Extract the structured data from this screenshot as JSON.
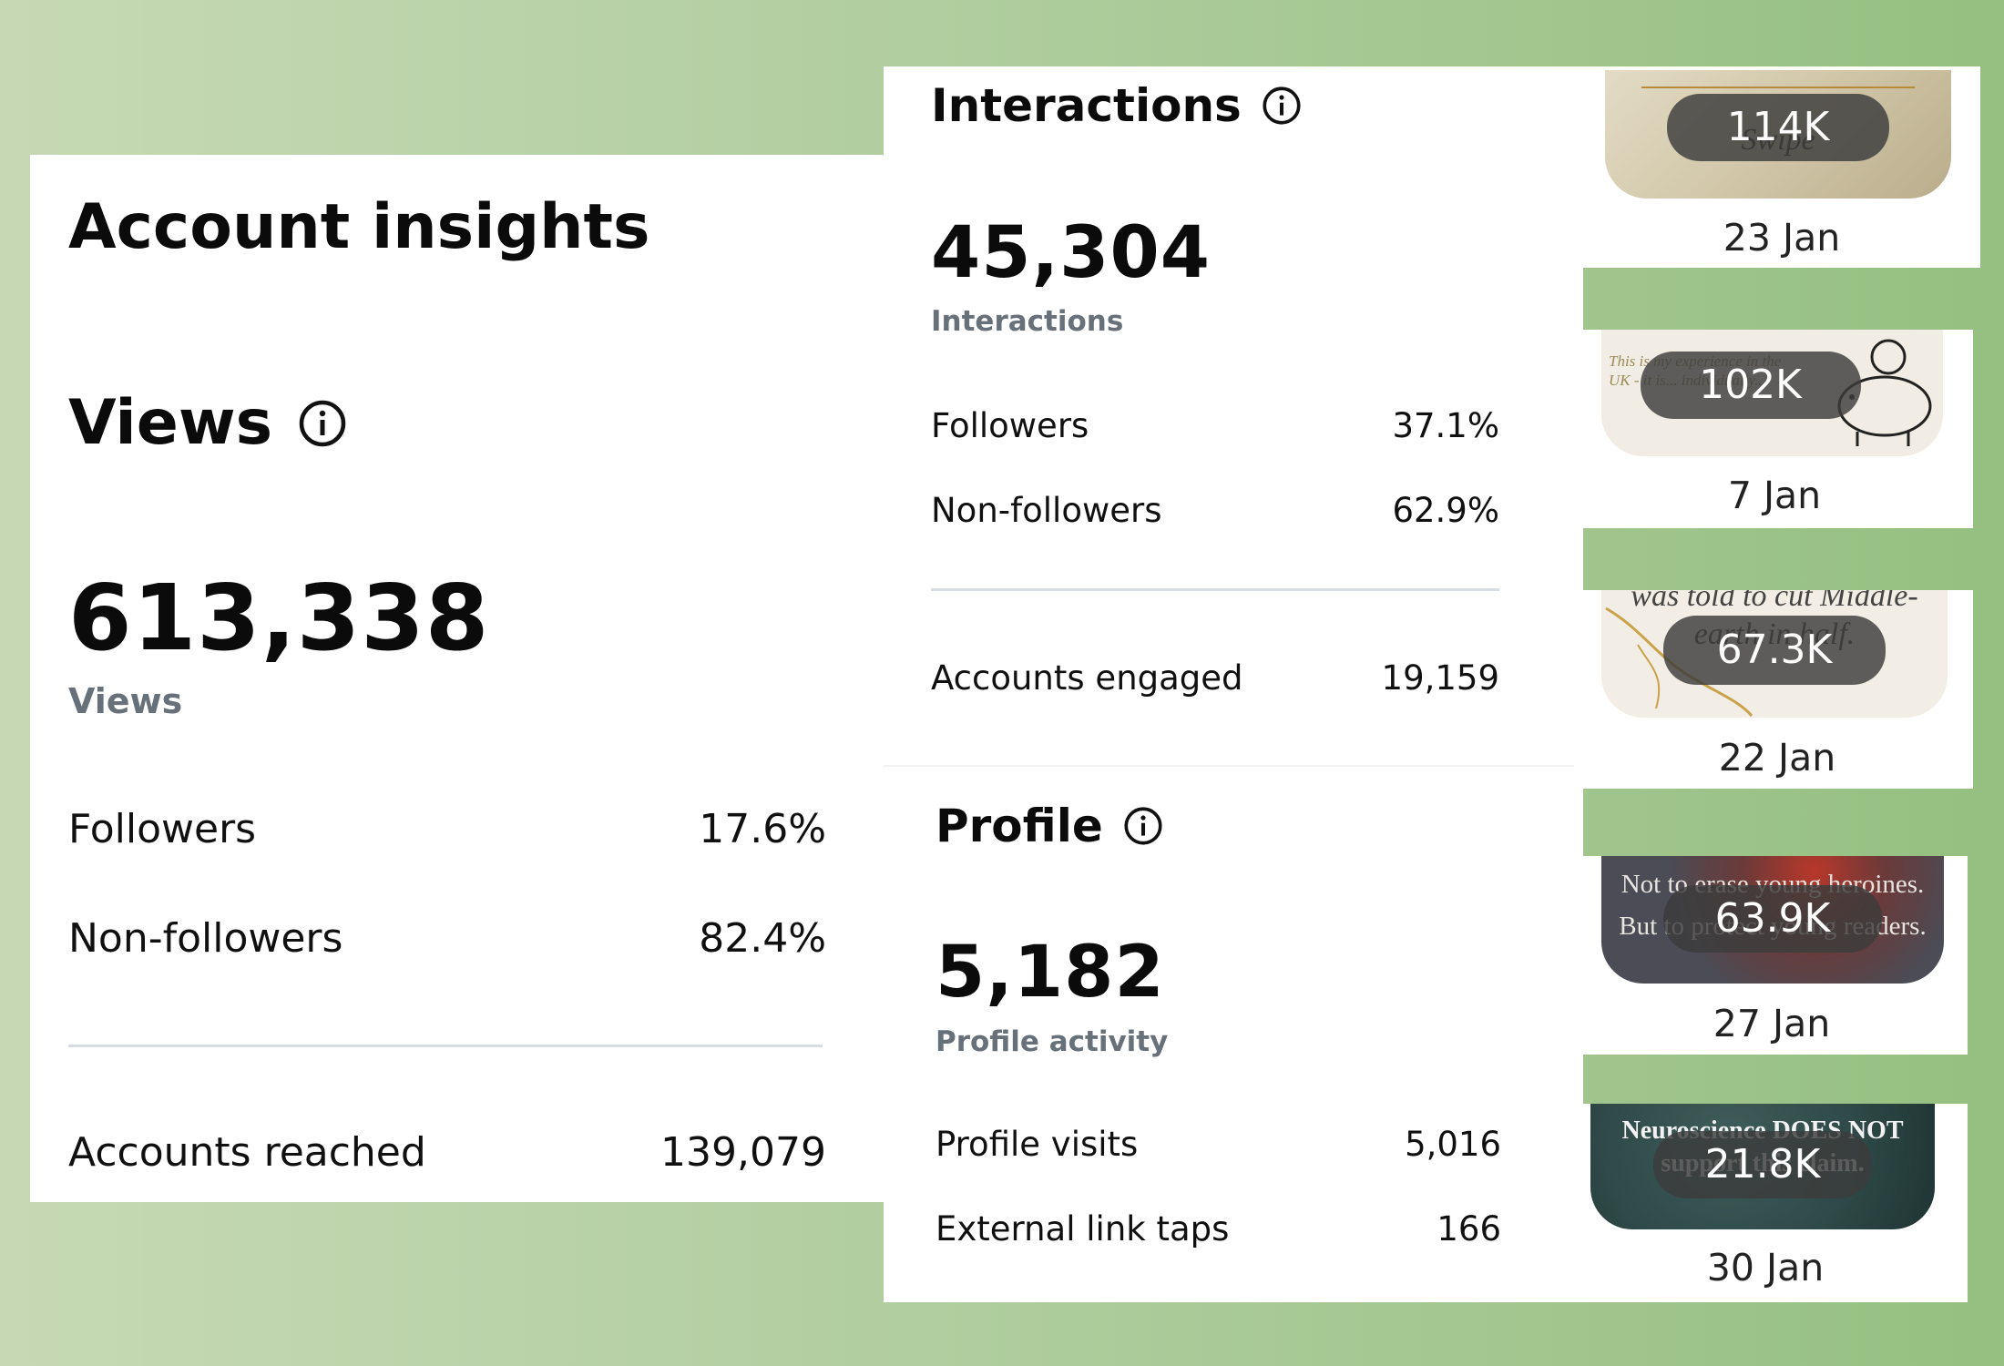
{
  "views_panel": {
    "title": "Account insights",
    "heading": "Views",
    "total": "613,338",
    "total_label": "Views",
    "rows": [
      {
        "label": "Followers",
        "value": "17.6%"
      },
      {
        "label": "Non-followers",
        "value": "82.4%"
      }
    ],
    "reached": {
      "label": "Accounts reached",
      "value": "139,079"
    }
  },
  "interactions_panel": {
    "heading": "Interactions",
    "total": "45,304",
    "total_label": "Interactions",
    "rows": [
      {
        "label": "Followers",
        "value": "37.1%"
      },
      {
        "label": "Non-followers",
        "value": "62.9%"
      }
    ],
    "engaged": {
      "label": "Accounts engaged",
      "value": "19,159"
    }
  },
  "profile_panel": {
    "heading": "Profile",
    "total": "5,182",
    "total_label": "Profile activity",
    "rows": [
      {
        "label": "Profile visits",
        "value": "5,016"
      },
      {
        "label": "External link taps",
        "value": "166"
      }
    ]
  },
  "posts": [
    {
      "views": "114K",
      "date": "23 Jan",
      "thumb_text": "Swipe",
      "thumb_color": "#d8cfb3"
    },
    {
      "views": "102K",
      "date": "7 Jan",
      "thumb_text": "This is my experience in the UK - it is... individually...",
      "thumb_color": "#f0ebe3"
    },
    {
      "views": "67.3K",
      "date": "22 Jan",
      "thumb_text": "was told to cut Middle-earth in half.",
      "thumb_color": "#f1ede5"
    },
    {
      "views": "63.9K",
      "date": "27 Jan",
      "thumb_text": "Not to erase young heroines. But to protect young readers.",
      "thumb_color": "#4b4c55"
    },
    {
      "views": "21.8K",
      "date": "30 Jan",
      "thumb_text": "Neuroscience DOES NOT support this claim.",
      "thumb_color": "#2f4a48"
    }
  ],
  "colors": {
    "background_light": "#c6d9b4",
    "background_dark": "#95c081",
    "muted_text": "#68707a",
    "divider": "#d8dde3",
    "pill": "#3c3c3c"
  }
}
